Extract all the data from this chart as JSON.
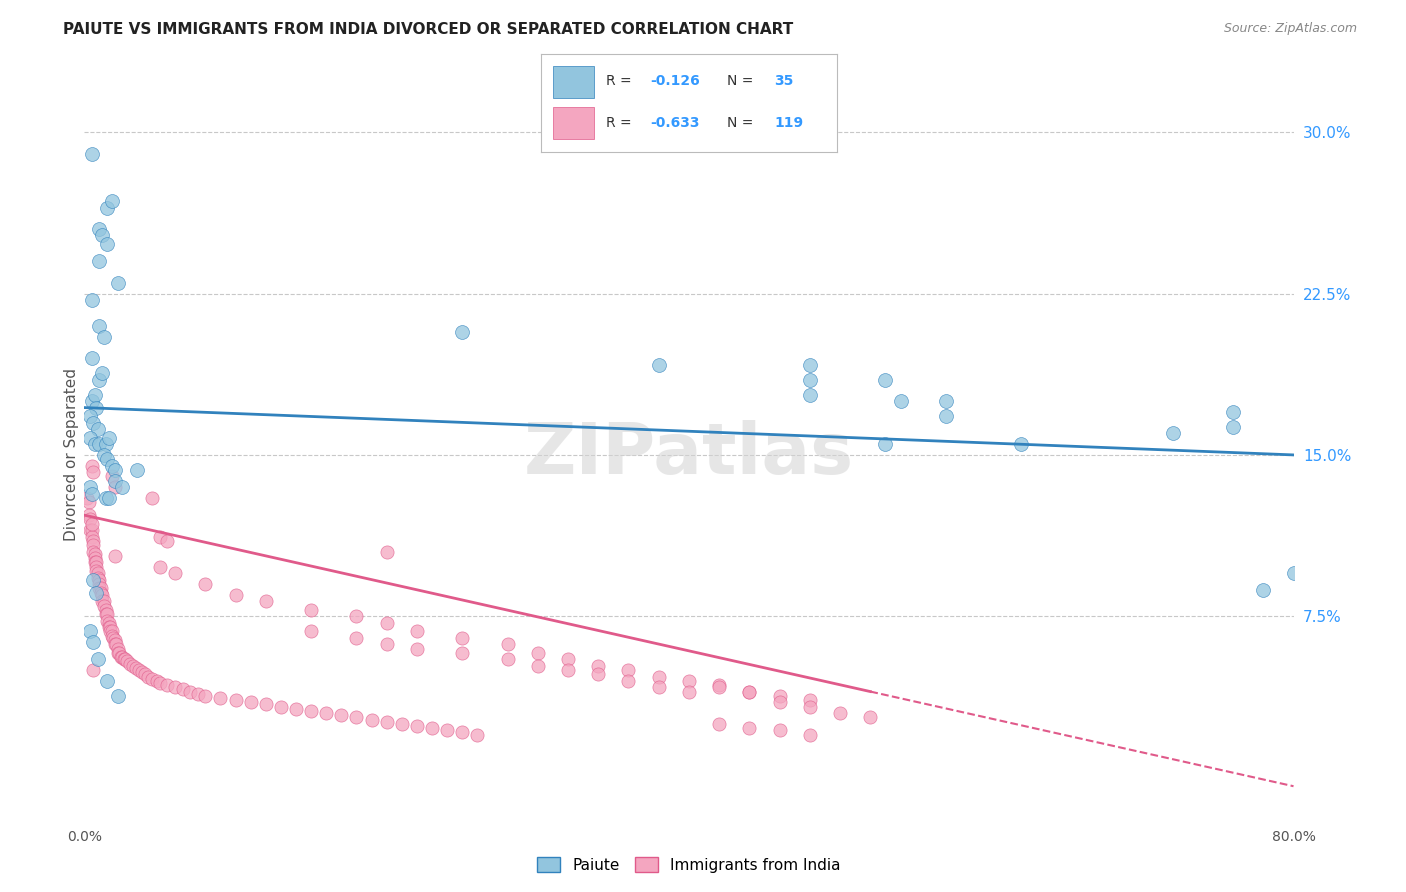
{
  "title": "PAIUTE VS IMMIGRANTS FROM INDIA DIVORCED OR SEPARATED CORRELATION CHART",
  "source": "Source: ZipAtlas.com",
  "ylabel": "Divorced or Separated",
  "xlim": [
    0.0,
    0.8
  ],
  "ylim": [
    -0.02,
    0.32
  ],
  "yticks_right": [
    0.075,
    0.15,
    0.225,
    0.3
  ],
  "ytick_labels_right": [
    "7.5%",
    "15.0%",
    "22.5%",
    "30.0%"
  ],
  "watermark": "ZIPatlas",
  "paiute_color": "#92c5de",
  "india_color": "#f4a6c0",
  "paiute_line_color": "#3182bd",
  "india_line_color": "#e05a8a",
  "background_color": "#ffffff",
  "grid_color": "#c8c8c8",
  "paiute_scatter": [
    [
      0.005,
      0.29
    ],
    [
      0.01,
      0.255
    ],
    [
      0.015,
      0.265
    ],
    [
      0.018,
      0.268
    ],
    [
      0.01,
      0.24
    ],
    [
      0.012,
      0.252
    ],
    [
      0.015,
      0.248
    ],
    [
      0.022,
      0.23
    ],
    [
      0.005,
      0.222
    ],
    [
      0.01,
      0.21
    ],
    [
      0.013,
      0.205
    ],
    [
      0.005,
      0.195
    ],
    [
      0.01,
      0.185
    ],
    [
      0.012,
      0.188
    ],
    [
      0.005,
      0.175
    ],
    [
      0.007,
      0.178
    ],
    [
      0.008,
      0.172
    ],
    [
      0.004,
      0.168
    ],
    [
      0.006,
      0.165
    ],
    [
      0.009,
      0.162
    ],
    [
      0.004,
      0.158
    ],
    [
      0.007,
      0.155
    ],
    [
      0.01,
      0.155
    ],
    [
      0.014,
      0.155
    ],
    [
      0.016,
      0.158
    ],
    [
      0.013,
      0.15
    ],
    [
      0.015,
      0.148
    ],
    [
      0.018,
      0.145
    ],
    [
      0.02,
      0.143
    ],
    [
      0.035,
      0.143
    ],
    [
      0.02,
      0.138
    ],
    [
      0.025,
      0.135
    ],
    [
      0.004,
      0.135
    ],
    [
      0.005,
      0.132
    ],
    [
      0.014,
      0.13
    ],
    [
      0.016,
      0.13
    ],
    [
      0.25,
      0.207
    ],
    [
      0.38,
      0.192
    ],
    [
      0.48,
      0.192
    ],
    [
      0.48,
      0.185
    ],
    [
      0.53,
      0.185
    ],
    [
      0.48,
      0.178
    ],
    [
      0.54,
      0.175
    ],
    [
      0.57,
      0.175
    ],
    [
      0.57,
      0.168
    ],
    [
      0.62,
      0.155
    ],
    [
      0.72,
      0.16
    ],
    [
      0.76,
      0.17
    ],
    [
      0.76,
      0.163
    ],
    [
      0.53,
      0.155
    ],
    [
      0.006,
      0.092
    ],
    [
      0.008,
      0.086
    ],
    [
      0.004,
      0.068
    ],
    [
      0.006,
      0.063
    ],
    [
      0.009,
      0.055
    ],
    [
      0.015,
      0.045
    ],
    [
      0.022,
      0.038
    ],
    [
      0.78,
      0.087
    ],
    [
      0.8,
      0.095
    ]
  ],
  "india_scatter": [
    [
      0.002,
      0.13
    ],
    [
      0.003,
      0.128
    ],
    [
      0.003,
      0.122
    ],
    [
      0.004,
      0.12
    ],
    [
      0.004,
      0.115
    ],
    [
      0.005,
      0.115
    ],
    [
      0.005,
      0.112
    ],
    [
      0.005,
      0.118
    ],
    [
      0.006,
      0.11
    ],
    [
      0.006,
      0.108
    ],
    [
      0.006,
      0.105
    ],
    [
      0.007,
      0.104
    ],
    [
      0.007,
      0.102
    ],
    [
      0.007,
      0.1
    ],
    [
      0.008,
      0.1
    ],
    [
      0.008,
      0.098
    ],
    [
      0.008,
      0.096
    ],
    [
      0.009,
      0.095
    ],
    [
      0.009,
      0.093
    ],
    [
      0.01,
      0.092
    ],
    [
      0.01,
      0.09
    ],
    [
      0.01,
      0.088
    ],
    [
      0.011,
      0.088
    ],
    [
      0.011,
      0.086
    ],
    [
      0.012,
      0.085
    ],
    [
      0.012,
      0.082
    ],
    [
      0.013,
      0.082
    ],
    [
      0.013,
      0.08
    ],
    [
      0.014,
      0.078
    ],
    [
      0.014,
      0.076
    ],
    [
      0.015,
      0.076
    ],
    [
      0.015,
      0.073
    ],
    [
      0.016,
      0.072
    ],
    [
      0.016,
      0.07
    ],
    [
      0.017,
      0.07
    ],
    [
      0.017,
      0.068
    ],
    [
      0.018,
      0.068
    ],
    [
      0.018,
      0.066
    ],
    [
      0.019,
      0.065
    ],
    [
      0.02,
      0.064
    ],
    [
      0.02,
      0.062
    ],
    [
      0.021,
      0.062
    ],
    [
      0.022,
      0.06
    ],
    [
      0.022,
      0.058
    ],
    [
      0.023,
      0.058
    ],
    [
      0.024,
      0.056
    ],
    [
      0.025,
      0.056
    ],
    [
      0.026,
      0.055
    ],
    [
      0.027,
      0.055
    ],
    [
      0.028,
      0.054
    ],
    [
      0.03,
      0.053
    ],
    [
      0.032,
      0.052
    ],
    [
      0.034,
      0.051
    ],
    [
      0.036,
      0.05
    ],
    [
      0.038,
      0.049
    ],
    [
      0.04,
      0.048
    ],
    [
      0.042,
      0.047
    ],
    [
      0.045,
      0.046
    ],
    [
      0.048,
      0.045
    ],
    [
      0.05,
      0.044
    ],
    [
      0.055,
      0.043
    ],
    [
      0.06,
      0.042
    ],
    [
      0.065,
      0.041
    ],
    [
      0.07,
      0.04
    ],
    [
      0.075,
      0.039
    ],
    [
      0.08,
      0.038
    ],
    [
      0.09,
      0.037
    ],
    [
      0.1,
      0.036
    ],
    [
      0.11,
      0.035
    ],
    [
      0.12,
      0.034
    ],
    [
      0.13,
      0.033
    ],
    [
      0.14,
      0.032
    ],
    [
      0.15,
      0.031
    ],
    [
      0.16,
      0.03
    ],
    [
      0.17,
      0.029
    ],
    [
      0.18,
      0.028
    ],
    [
      0.19,
      0.027
    ],
    [
      0.2,
      0.026
    ],
    [
      0.21,
      0.025
    ],
    [
      0.22,
      0.024
    ],
    [
      0.23,
      0.023
    ],
    [
      0.24,
      0.022
    ],
    [
      0.25,
      0.021
    ],
    [
      0.26,
      0.02
    ],
    [
      0.005,
      0.145
    ],
    [
      0.006,
      0.142
    ],
    [
      0.018,
      0.14
    ],
    [
      0.02,
      0.135
    ],
    [
      0.045,
      0.13
    ],
    [
      0.05,
      0.112
    ],
    [
      0.055,
      0.11
    ],
    [
      0.02,
      0.103
    ],
    [
      0.2,
      0.105
    ],
    [
      0.05,
      0.098
    ],
    [
      0.06,
      0.095
    ],
    [
      0.08,
      0.09
    ],
    [
      0.1,
      0.085
    ],
    [
      0.12,
      0.082
    ],
    [
      0.15,
      0.078
    ],
    [
      0.18,
      0.075
    ],
    [
      0.2,
      0.072
    ],
    [
      0.22,
      0.068
    ],
    [
      0.25,
      0.065
    ],
    [
      0.28,
      0.062
    ],
    [
      0.3,
      0.058
    ],
    [
      0.32,
      0.055
    ],
    [
      0.34,
      0.052
    ],
    [
      0.36,
      0.05
    ],
    [
      0.38,
      0.047
    ],
    [
      0.4,
      0.045
    ],
    [
      0.42,
      0.043
    ],
    [
      0.44,
      0.04
    ],
    [
      0.46,
      0.038
    ],
    [
      0.48,
      0.036
    ],
    [
      0.15,
      0.068
    ],
    [
      0.18,
      0.065
    ],
    [
      0.2,
      0.062
    ],
    [
      0.22,
      0.06
    ],
    [
      0.25,
      0.058
    ],
    [
      0.28,
      0.055
    ],
    [
      0.3,
      0.052
    ],
    [
      0.32,
      0.05
    ],
    [
      0.34,
      0.048
    ],
    [
      0.36,
      0.045
    ],
    [
      0.38,
      0.042
    ],
    [
      0.4,
      0.04
    ],
    [
      0.42,
      0.042
    ],
    [
      0.44,
      0.04
    ],
    [
      0.46,
      0.035
    ],
    [
      0.48,
      0.033
    ],
    [
      0.5,
      0.03
    ],
    [
      0.52,
      0.028
    ],
    [
      0.42,
      0.025
    ],
    [
      0.44,
      0.023
    ],
    [
      0.46,
      0.022
    ],
    [
      0.48,
      0.02
    ],
    [
      0.006,
      0.05
    ]
  ]
}
